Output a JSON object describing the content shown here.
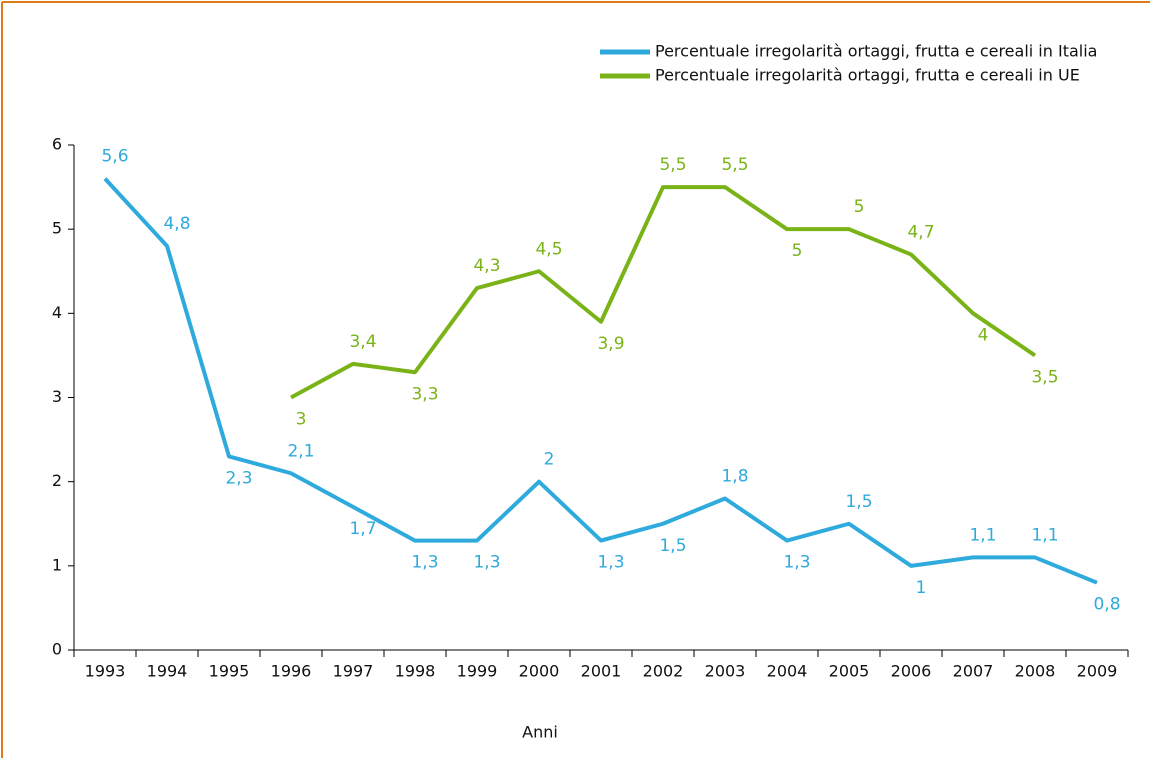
{
  "chart_data": {
    "type": "line",
    "x_label": "Anni",
    "categories": [
      "1993",
      "1994",
      "1995",
      "1996",
      "1997",
      "1998",
      "1999",
      "2000",
      "2001",
      "2002",
      "2003",
      "2004",
      "2005",
      "2006",
      "2007",
      "2008",
      "2009"
    ],
    "series": [
      {
        "name": "Percentuale irregolarità ortaggi, frutta e cereali in Italia",
        "color": "#2eaadc",
        "values": [
          5.6,
          4.8,
          2.3,
          2.1,
          1.7,
          1.3,
          1.3,
          2,
          1.3,
          1.5,
          1.8,
          1.3,
          1.5,
          1,
          1.1,
          1.1,
          0.8
        ],
        "value_labels": [
          "5,6",
          "4,8",
          "2,3",
          "2,1",
          "1,7",
          "1,3",
          "1,3",
          "2",
          "1,3",
          "1,5",
          "1,8",
          "1,3",
          "1,5",
          "1",
          "1,1",
          "1,1",
          "0,8"
        ]
      },
      {
        "name": "Percentuale irregolarità ortaggi, frutta e cereali in UE",
        "color": "#7ab317",
        "values": [
          null,
          null,
          null,
          3,
          3.4,
          3.3,
          4.3,
          4.5,
          3.9,
          5.5,
          5.5,
          5,
          5,
          4.7,
          4,
          3.5,
          null
        ],
        "value_labels": [
          null,
          null,
          null,
          "3",
          "3,4",
          "3,3",
          "4,3",
          "4,5",
          "3,9",
          "5,5",
          "5,5",
          "5",
          "5",
          "4,7",
          "4",
          "3,5",
          null
        ]
      }
    ],
    "ylim": [
      0,
      6
    ],
    "yticks": [
      0,
      1,
      2,
      3,
      4,
      5,
      6
    ],
    "legend": "upper right",
    "grid": false
  }
}
